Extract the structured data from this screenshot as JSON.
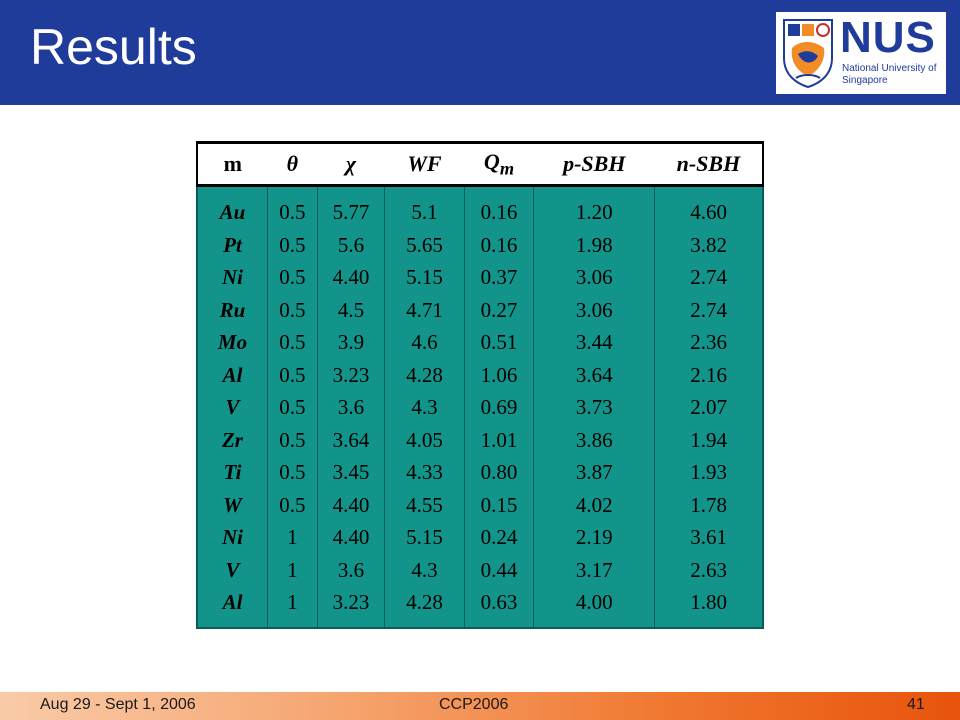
{
  "slide": {
    "title": "Results"
  },
  "logo": {
    "wordmark": "NUS",
    "subtitle": "National University of Singapore",
    "icon": "nus-crest-icon",
    "brand_color": "#1f3c9a"
  },
  "table": {
    "header_color": "#ffffff",
    "body_color": "#12948a",
    "columns": [
      "m",
      "θ",
      "χ",
      "WF",
      "Q",
      "p-SBH",
      "n-SBH"
    ],
    "q_subscript": "m",
    "rows": [
      {
        "m": "Au",
        "theta": "0.5",
        "chi": "5.77",
        "wf": "5.1",
        "qm": "0.16",
        "psbh": "1.20",
        "nsbh": "4.60"
      },
      {
        "m": "Pt",
        "theta": "0.5",
        "chi": "5.6",
        "wf": "5.65",
        "qm": "0.16",
        "psbh": "1.98",
        "nsbh": "3.82"
      },
      {
        "m": "Ni",
        "theta": "0.5",
        "chi": "4.40",
        "wf": "5.15",
        "qm": "0.37",
        "psbh": "3.06",
        "nsbh": "2.74"
      },
      {
        "m": "Ru",
        "theta": "0.5",
        "chi": "4.5",
        "wf": "4.71",
        "qm": "0.27",
        "psbh": "3.06",
        "nsbh": "2.74"
      },
      {
        "m": "Mo",
        "theta": "0.5",
        "chi": "3.9",
        "wf": "4.6",
        "qm": "0.51",
        "psbh": "3.44",
        "nsbh": "2.36"
      },
      {
        "m": "Al",
        "theta": "0.5",
        "chi": "3.23",
        "wf": "4.28",
        "qm": "1.06",
        "psbh": "3.64",
        "nsbh": "2.16"
      },
      {
        "m": "V",
        "theta": "0.5",
        "chi": "3.6",
        "wf": "4.3",
        "qm": "0.69",
        "psbh": "3.73",
        "nsbh": "2.07"
      },
      {
        "m": "Zr",
        "theta": "0.5",
        "chi": "3.64",
        "wf": "4.05",
        "qm": "1.01",
        "psbh": "3.86",
        "nsbh": "1.94"
      },
      {
        "m": "Ti",
        "theta": "0.5",
        "chi": "3.45",
        "wf": "4.33",
        "qm": "0.80",
        "psbh": "3.87",
        "nsbh": "1.93"
      },
      {
        "m": "W",
        "theta": "0.5",
        "chi": "4.40",
        "wf": "4.55",
        "qm": "0.15",
        "psbh": "4.02",
        "nsbh": "1.78"
      },
      {
        "m": "Ni",
        "theta": "1",
        "chi": "4.40",
        "wf": "5.15",
        "qm": "0.24",
        "psbh": "2.19",
        "nsbh": "3.61"
      },
      {
        "m": "V",
        "theta": "1",
        "chi": "3.6",
        "wf": "4.3",
        "qm": "0.44",
        "psbh": "3.17",
        "nsbh": "2.63"
      },
      {
        "m": "Al",
        "theta": "1",
        "chi": "3.23",
        "wf": "4.28",
        "qm": "0.63",
        "psbh": "4.00",
        "nsbh": "1.80"
      }
    ]
  },
  "footer": {
    "date": "Aug 29 - Sept 1, 2006",
    "conference": "CCP2006",
    "page": "41"
  }
}
